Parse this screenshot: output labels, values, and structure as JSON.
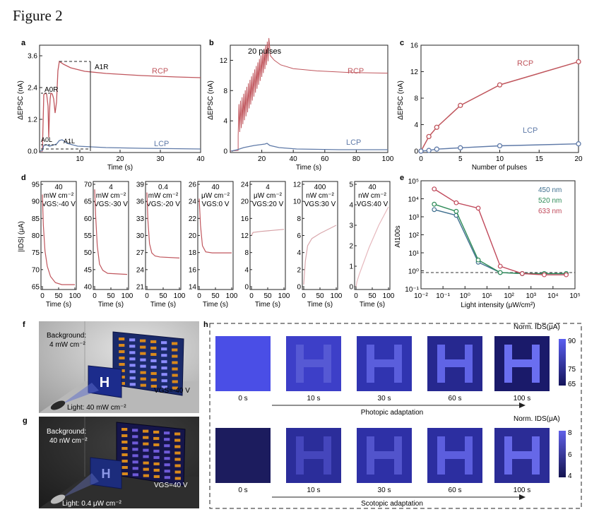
{
  "figure_title": "Figure 2",
  "colors": {
    "rcp": "#c0565d",
    "lcp": "#5f7aa8",
    "c450": "#3f6f8f",
    "c520": "#2e8b57",
    "c633": "#c0485a",
    "axis": "#222222"
  },
  "panel_a": {
    "label": "a",
    "ylabel": "ΔEPSC (nA)",
    "xlabel": "Time (s)",
    "yticks": [
      "0.0",
      "1.2",
      "2.4",
      "3.6"
    ],
    "xticks": [
      "10",
      "20",
      "30",
      "40"
    ],
    "rcp_label": "RCP",
    "lcp_label": "LCP",
    "a1r": "A1R",
    "a0r": "A0R",
    "a0l": "A0L",
    "a1l": "A1L"
  },
  "panel_b": {
    "label": "b",
    "ylabel": "ΔEPSC (nA)",
    "xlabel": "Time (s)",
    "yticks": [
      "0",
      "4",
      "8",
      "12"
    ],
    "xticks": [
      "20",
      "40",
      "60",
      "80",
      "100"
    ],
    "annotation": "20 pulses",
    "rcp_label": "RCP",
    "lcp_label": "LCP"
  },
  "panel_c": {
    "label": "c",
    "ylabel": "ΔEPSC (nA)",
    "xlabel": "Number of pulses",
    "yticks": [
      "0",
      "4",
      "8",
      "12",
      "16"
    ],
    "xticks": [
      "0",
      "5",
      "10",
      "15",
      "20"
    ],
    "rcp_label": "RCP",
    "lcp_label": "LCP",
    "chart_data": {
      "type": "line",
      "x": [
        1,
        2,
        5,
        10,
        20
      ],
      "series": [
        {
          "name": "RCP",
          "values": [
            2.2,
            3.6,
            6.9,
            10.0,
            13.5
          ]
        },
        {
          "name": "LCP",
          "values": [
            0.1,
            0.3,
            0.5,
            0.8,
            1.1
          ]
        }
      ],
      "xlim": [
        0,
        20
      ],
      "ylim": [
        0,
        16
      ]
    }
  },
  "panel_d": {
    "label": "d",
    "ylabel": "|IDS| (μA)",
    "xlabel": "Time (s)",
    "xticks": [
      "0",
      "50",
      "100"
    ],
    "subpanels": [
      {
        "line1": "40",
        "line2": "mW cm⁻²",
        "vgs": "VGS:-40 V",
        "yticks": [
          "65",
          "70",
          "75",
          "80",
          "85",
          "90",
          "95"
        ]
      },
      {
        "line1": "4",
        "line2": "mW cm⁻²",
        "vgs": "VGS:-30 V",
        "yticks": [
          "40",
          "45",
          "50",
          "55",
          "60",
          "65",
          "70"
        ]
      },
      {
        "line1": "0.4",
        "line2": "mW cm⁻²",
        "vgs": "VGS:-20 V",
        "yticks": [
          "21",
          "24",
          "27",
          "30",
          "33",
          "36",
          "39"
        ]
      },
      {
        "line1": "40",
        "line2": "μW cm⁻²",
        "vgs": "VGS:0 V",
        "yticks": [
          "14",
          "16",
          "18",
          "20",
          "22",
          "24",
          "26"
        ]
      },
      {
        "line1": "4",
        "line2": "μW cm⁻²",
        "vgs": "VGS:20 V",
        "yticks": [
          "0",
          "4",
          "8",
          "12",
          "16",
          "20",
          "24"
        ]
      },
      {
        "line1": "400",
        "line2": "nW cm⁻²",
        "vgs": "VGS:30 V",
        "yticks": [
          "0",
          "2",
          "4",
          "6",
          "8",
          "10",
          "12"
        ]
      },
      {
        "line1": "40",
        "line2": "nW cm⁻²",
        "vgs": "VGS:40 V",
        "yticks": [
          "0",
          "1",
          "2",
          "3",
          "4",
          "5"
        ]
      }
    ]
  },
  "panel_e": {
    "label": "e",
    "ylabel": "AI100s",
    "xlabel": "Light intensity (μW/cm²)",
    "xticks": [
      "10⁻²",
      "10⁻¹",
      "10⁰",
      "10¹",
      "10²",
      "10³",
      "10⁴",
      "10⁵"
    ],
    "yticks": [
      "10⁻¹",
      "10⁰",
      "10¹",
      "10²",
      "10³",
      "10⁴",
      "10⁵"
    ],
    "chart_data": {
      "type": "line",
      "x": [
        0.04,
        0.4,
        4,
        40,
        400,
        4000,
        40000
      ],
      "series": [
        {
          "name": "450 nm",
          "values": [
            2500,
            1200,
            3,
            0.8,
            0.7,
            0.7,
            0.7
          ]
        },
        {
          "name": "520 nm",
          "values": [
            5000,
            2000,
            4,
            0.8,
            0.7,
            0.7,
            0.7
          ]
        },
        {
          "name": "633 nm",
          "values": [
            35000,
            6000,
            3000,
            1.8,
            0.7,
            0.6,
            0.6
          ]
        }
      ],
      "baseline": 0.8,
      "xscale": "log",
      "yscale": "log"
    }
  },
  "panel_f": {
    "label": "f",
    "bg_line1": "Background:",
    "bg_line2": "4 mW cm⁻²",
    "vgs": "VGS=-40 V",
    "light": "Light: 40 mW cm⁻²"
  },
  "panel_g": {
    "label": "g",
    "bg_line1": "Background:",
    "bg_line2": "40 nW cm⁻²",
    "vgs": "VGS=40 V",
    "light": "Light: 0.4 μW cm⁻²"
  },
  "panel_h": {
    "label": "h",
    "top": {
      "norm_label": "Norm. IDS(μA)",
      "times": [
        "0 s",
        "10 s",
        "30 s",
        "60 s",
        "100 s"
      ],
      "arrow_label": "Photopic adaptation",
      "scale": [
        "90",
        "75",
        "65"
      ]
    },
    "bottom": {
      "norm_label": "Norm. IDS(μA)",
      "times": [
        "0 s",
        "10 s",
        "30 s",
        "60 s",
        "100 s"
      ],
      "arrow_label": "Scotopic adaptation",
      "scale": [
        "8",
        "6",
        "4"
      ]
    }
  }
}
